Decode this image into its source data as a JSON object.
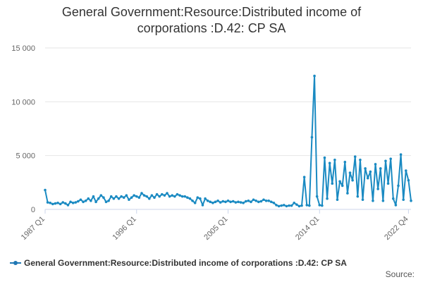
{
  "colors": {
    "series": "#1a8ac2",
    "grid": "#e6e6e6",
    "axis": "#ccd6eb",
    "text": "#333333",
    "tick": "#666666"
  },
  "chart_data": {
    "type": "line",
    "title_lines": [
      "General Government:Resource:Distributed income of",
      "corporations :D.42: CP SA"
    ],
    "xlabel": "",
    "ylabel": "",
    "ylim": [
      0,
      15000
    ],
    "y_ticks": [
      0,
      5000,
      10000,
      15000
    ],
    "y_tick_labels": [
      "0",
      "5 000",
      "10 000",
      "15 000"
    ],
    "x_tick_labels": [
      "1987 Q1",
      "1996 Q1",
      "2005 Q1",
      "2014 Q1",
      "2022 Q4"
    ],
    "x_tick_indices": [
      0,
      36,
      72,
      108,
      143
    ],
    "grid": true,
    "legend_position": "bottom",
    "source_label": "Source:",
    "series": [
      {
        "name": "General Government:Resource:Distributed income of corporations :D.42: CP SA",
        "start_quarter": "1987 Q1",
        "values": [
          1800,
          650,
          600,
          500,
          550,
          600,
          500,
          650,
          550,
          400,
          700,
          600,
          650,
          750,
          900,
          700,
          800,
          1000,
          800,
          1200,
          700,
          1000,
          1300,
          1100,
          700,
          800,
          1200,
          1000,
          1200,
          1000,
          1200,
          1100,
          1300,
          900,
          1100,
          1300,
          1200,
          1100,
          1500,
          1300,
          1200,
          1000,
          1300,
          1100,
          1400,
          1200,
          1400,
          1300,
          1500,
          1200,
          1300,
          1200,
          1400,
          1300,
          1200,
          1200,
          1100,
          1000,
          800,
          600,
          1100,
          1000,
          400,
          1000,
          800,
          700,
          600,
          700,
          800,
          650,
          750,
          700,
          800,
          700,
          750,
          650,
          700,
          650,
          600,
          750,
          800,
          700,
          900,
          800,
          700,
          750,
          900,
          800,
          800,
          700,
          600,
          400,
          300,
          350,
          400,
          300,
          350,
          350,
          600,
          450,
          300,
          350,
          3000,
          400,
          350,
          6700,
          12400,
          1200,
          400,
          350,
          4800,
          1000,
          4300,
          2400,
          4600,
          900,
          2600,
          2200,
          4400,
          1500,
          3400,
          2700,
          4900,
          1200,
          4600,
          900,
          3800,
          2900,
          3500,
          800,
          4200,
          1900,
          3800,
          800,
          4500,
          2400,
          4700,
          1000,
          400,
          2200,
          5100,
          900,
          3600,
          2700,
          800
        ]
      }
    ]
  }
}
